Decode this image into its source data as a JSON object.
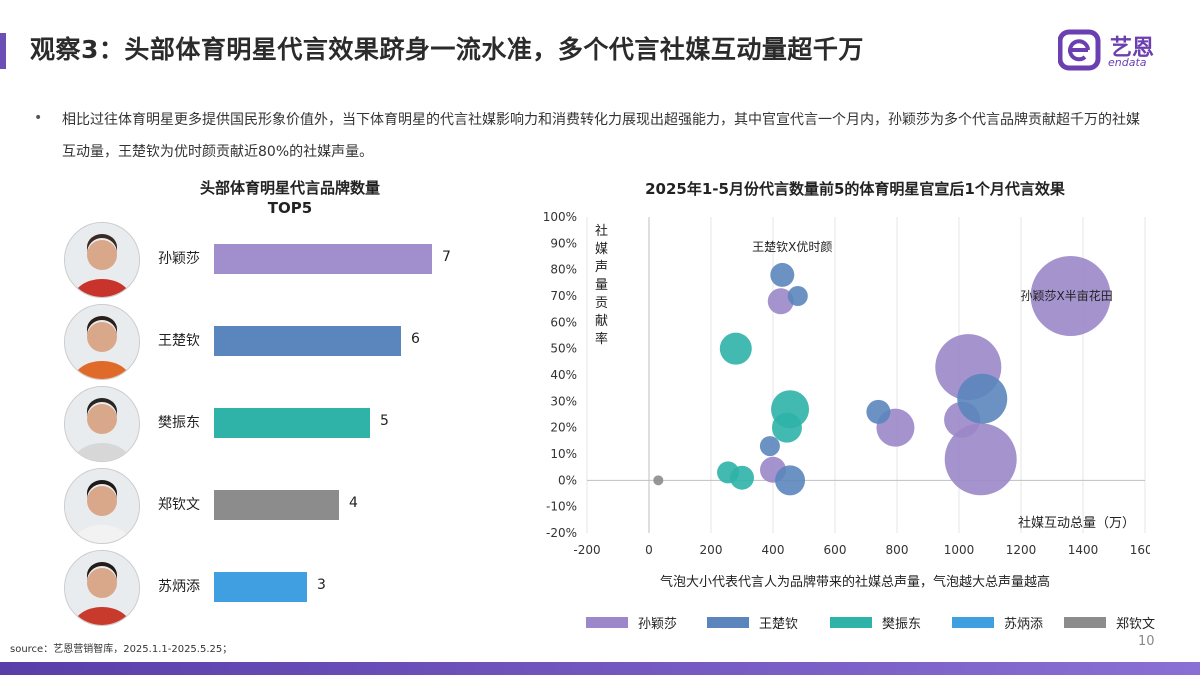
{
  "header": {
    "title": "观察3：头部体育明星代言效果跻身一流水准，多个代言社媒互动量超千万",
    "logo_text": "艺恩",
    "logo_sub": "endata"
  },
  "bullet": "相比过往体育明星更多提供国民形象价值外，当下体育明星的代言社媒影响力和消费转化力展现出超强能力，其中官宣代言一个月内，孙颖莎为多个代言品牌贡献超千万的社媒互动量，王楚钦为优时颜贡献近80%的社媒声量。",
  "chart_data": [
    {
      "type": "bar",
      "title": "头部体育明星代言品牌数量TOP5",
      "title_line1": "头部体育明星代言品牌数量",
      "title_line2": "TOP5",
      "categories": [
        "孙颖莎",
        "王楚钦",
        "樊振东",
        "郑钦文",
        "苏炳添"
      ],
      "values": [
        7,
        6,
        5,
        4,
        3
      ],
      "colors": [
        "#a08fcc",
        "#5b86bd",
        "#2fb3a8",
        "#8c8c8c",
        "#3f9fe0"
      ],
      "xlim": [
        0,
        7
      ]
    },
    {
      "type": "scatter",
      "title": "2025年1-5月份代言数量前5的体育明星官宣后1个月代言效果",
      "xlabel": "社媒互动总量（万）",
      "ylabel": "社媒声量贡献率",
      "xlim": [
        -200,
        1600
      ],
      "xticks": [
        "-200",
        "0",
        "200",
        "400",
        "600",
        "800",
        "1000",
        "1200",
        "1400",
        "1600"
      ],
      "ylim": [
        -0.2,
        1.0
      ],
      "yticks": [
        "-20%",
        "-10%",
        "0%",
        "10%",
        "20%",
        "30%",
        "40%",
        "50%",
        "60%",
        "70%",
        "80%",
        "90%",
        "100%"
      ],
      "note": "气泡大小代表代言人为品牌带来的社媒总声量，气泡越大总声量越高",
      "annotations": [
        {
          "text": "王楚钦X优时颜",
          "series": "王楚钦",
          "x": 430,
          "y": 0.78
        },
        {
          "text": "孙颖莎X半亩花田",
          "series": "孙颖莎",
          "x": 1360,
          "y": 0.7
        }
      ],
      "series": [
        {
          "name": "孙颖莎",
          "color": "#9b87c9",
          "points": [
            {
              "x": 1360,
              "y": 0.7,
              "size": 40
            },
            {
              "x": 1030,
              "y": 0.43,
              "size": 33
            },
            {
              "x": 1070,
              "y": 0.08,
              "size": 36
            },
            {
              "x": 1010,
              "y": 0.23,
              "size": 18
            },
            {
              "x": 795,
              "y": 0.2,
              "size": 19
            },
            {
              "x": 425,
              "y": 0.68,
              "size": 13
            },
            {
              "x": 400,
              "y": 0.04,
              "size": 13
            }
          ]
        },
        {
          "name": "王楚钦",
          "color": "#5b86bd",
          "points": [
            {
              "x": 430,
              "y": 0.78,
              "size": 12
            },
            {
              "x": 480,
              "y": 0.7,
              "size": 10
            },
            {
              "x": 1075,
              "y": 0.31,
              "size": 25
            },
            {
              "x": 740,
              "y": 0.26,
              "size": 12
            },
            {
              "x": 390,
              "y": 0.13,
              "size": 10
            },
            {
              "x": 455,
              "y": 0.0,
              "size": 15
            }
          ]
        },
        {
          "name": "樊振东",
          "color": "#2fb3a8",
          "points": [
            {
              "x": 280,
              "y": 0.5,
              "size": 16
            },
            {
              "x": 455,
              "y": 0.27,
              "size": 19
            },
            {
              "x": 445,
              "y": 0.2,
              "size": 15
            },
            {
              "x": 255,
              "y": 0.03,
              "size": 11
            },
            {
              "x": 300,
              "y": 0.01,
              "size": 12
            }
          ]
        },
        {
          "name": "苏炳添",
          "color": "#3f9fe0",
          "points": []
        },
        {
          "name": "郑钦文",
          "color": "#8c8c8c",
          "points": [
            {
              "x": 30,
              "y": 0.0,
              "size": 5
            }
          ]
        }
      ]
    }
  ],
  "legend": [
    "孙颖莎",
    "王楚钦",
    "樊振东",
    "苏炳添",
    "郑钦文"
  ],
  "source": "source：艺恩营销智库，2025.1.1-2025.5.25；",
  "page_number": "10"
}
